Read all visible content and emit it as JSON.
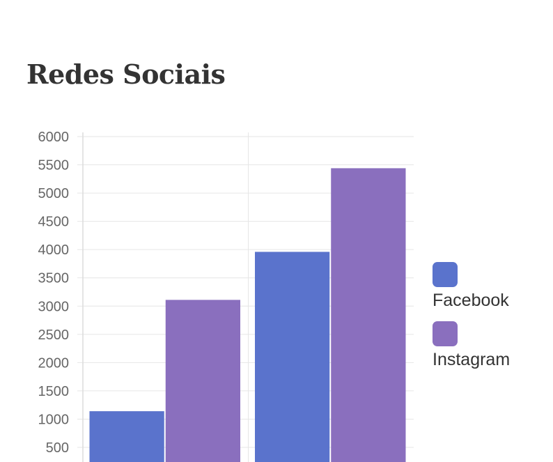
{
  "chart_data": {
    "type": "bar",
    "title": "Redes Sociais",
    "categories": [
      "",
      ""
    ],
    "series": [
      {
        "name": "Facebook",
        "color": "#5a73cc",
        "values": [
          1140,
          3960
        ]
      },
      {
        "name": "Instagram",
        "color": "#8a6fbe",
        "values": [
          3110,
          5440
        ]
      }
    ],
    "yticks": [
      500,
      1000,
      1500,
      2000,
      2500,
      3000,
      3500,
      4000,
      4500,
      5000,
      5500,
      6000
    ],
    "ylim": [
      0,
      6000
    ],
    "grid": true,
    "legend": "right",
    "xlabel": "",
    "ylabel": ""
  }
}
